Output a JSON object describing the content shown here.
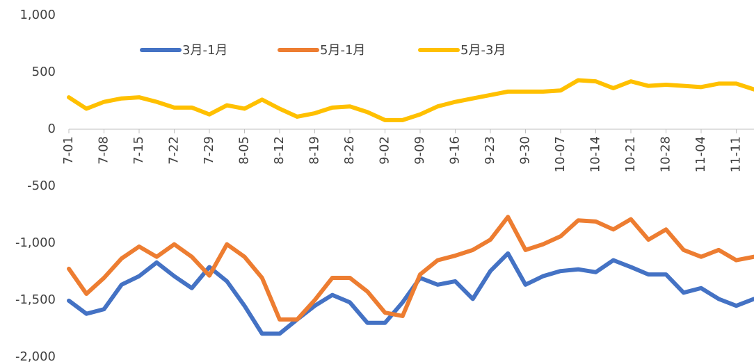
{
  "chart_data": {
    "type": "line",
    "categories": [
      "7-01",
      null,
      "7-08",
      null,
      "7-15",
      null,
      "7-22",
      null,
      "7-29",
      null,
      "8-05",
      null,
      "8-12",
      null,
      "8-19",
      null,
      "8-26",
      null,
      "9-02",
      null,
      "9-09",
      null,
      "9-16",
      null,
      "9-23",
      null,
      "9-30",
      null,
      "10-07",
      null,
      "10-14",
      null,
      "10-21",
      null,
      "10-28",
      null,
      "11-04",
      null,
      "11-11",
      null
    ],
    "series": [
      {
        "name": "3月-1月",
        "color": "#4472c4",
        "values": [
          -1505,
          -1620,
          -1580,
          -1365,
          -1290,
          -1170,
          -1290,
          -1395,
          -1210,
          -1335,
          -1550,
          -1795,
          -1795,
          -1670,
          -1550,
          -1455,
          -1520,
          -1700,
          -1700,
          -1520,
          -1305,
          -1365,
          -1335,
          -1490,
          -1245,
          -1090,
          -1365,
          -1290,
          -1245,
          -1230,
          -1255,
          -1150,
          -1210,
          -1275,
          -1275,
          -1435,
          -1395,
          -1490,
          -1550,
          -1490
        ]
      },
      {
        "name": "5月-1月",
        "color": "#ed7d31",
        "values": [
          -1225,
          -1445,
          -1305,
          -1135,
          -1030,
          -1120,
          -1010,
          -1120,
          -1285,
          -1010,
          -1120,
          -1305,
          -1670,
          -1670,
          -1500,
          -1305,
          -1305,
          -1425,
          -1610,
          -1640,
          -1275,
          -1150,
          -1110,
          -1060,
          -970,
          -770,
          -1060,
          -1010,
          -940,
          -800,
          -810,
          -880,
          -790,
          -970,
          -880,
          -1060,
          -1120,
          -1060,
          -1150,
          -1120
        ]
      },
      {
        "name": "5月-3月",
        "color": "#ffc000",
        "values": [
          280,
          180,
          240,
          270,
          280,
          240,
          190,
          190,
          130,
          210,
          180,
          260,
          180,
          110,
          140,
          190,
          200,
          150,
          80,
          80,
          130,
          200,
          240,
          270,
          300,
          330,
          330,
          330,
          340,
          430,
          420,
          360,
          420,
          380,
          390,
          380,
          370,
          400,
          400,
          350
        ]
      }
    ],
    "ylim": [
      -2000,
      1000
    ],
    "yticks": [
      {
        "value": 1000,
        "label": "1,000"
      },
      500,
      0,
      -500,
      {
        "value": -1000,
        "label": "-1,000"
      },
      {
        "value": -1500,
        "label": "-1,500"
      },
      {
        "value": -2000,
        "label": "-2,000"
      }
    ],
    "grid": false,
    "legend": "top"
  }
}
